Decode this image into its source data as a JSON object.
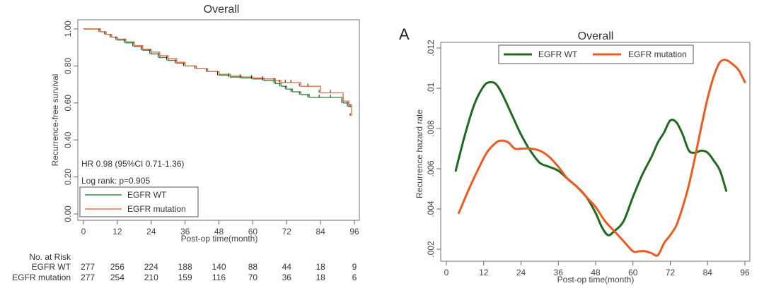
{
  "chart_data": [
    {
      "type": "line",
      "subtype": "kaplan-meier",
      "title": "Overall",
      "xlabel": "Post-op time(month)",
      "ylabel": "Recurrence-free survival",
      "xlim": [
        0,
        96
      ],
      "ylim": [
        0,
        1
      ],
      "xticks": [
        "0",
        "12",
        "24",
        "36",
        "48",
        "60",
        "72",
        "84",
        "96"
      ],
      "xtick_values": [
        0,
        12,
        24,
        36,
        48,
        60,
        72,
        84,
        96
      ],
      "yticks": [
        "0.00",
        "0.20",
        "0.40",
        "0.60",
        "0.80",
        "1.00"
      ],
      "ytick_values": [
        0,
        0.2,
        0.4,
        0.6,
        0.8,
        1.0
      ],
      "grid": false,
      "legend_position": "bottom-left",
      "annotations": [
        "HR 0.98 (95%CI 0.71-1.36)",
        "Log rank: p=0.905"
      ],
      "series": [
        {
          "name": "EGFR WT",
          "color": "#3a8a4a",
          "x": [
            0,
            4,
            6,
            8,
            10,
            12,
            15,
            18,
            21,
            24,
            27,
            30,
            33,
            36,
            40,
            44,
            48,
            52,
            56,
            60,
            64,
            68,
            70,
            72,
            74,
            77,
            80,
            84,
            88,
            92,
            94,
            95
          ],
          "y": [
            1.0,
            1.0,
            0.985,
            0.97,
            0.955,
            0.94,
            0.925,
            0.905,
            0.885,
            0.865,
            0.845,
            0.83,
            0.815,
            0.8,
            0.785,
            0.77,
            0.75,
            0.74,
            0.735,
            0.73,
            0.72,
            0.705,
            0.69,
            0.675,
            0.66,
            0.645,
            0.63,
            0.63,
            0.63,
            0.6,
            0.58,
            0.58
          ]
        },
        {
          "name": "EGFR mutation",
          "color": "#e8734a",
          "x": [
            0,
            4,
            6,
            8,
            10,
            12,
            15,
            18,
            21,
            24,
            27,
            30,
            33,
            36,
            40,
            44,
            48,
            52,
            56,
            60,
            64,
            68,
            70,
            72,
            74,
            77,
            80,
            84,
            88,
            92,
            94,
            95
          ],
          "y": [
            1.0,
            1.0,
            0.985,
            0.97,
            0.955,
            0.945,
            0.93,
            0.91,
            0.89,
            0.875,
            0.855,
            0.84,
            0.82,
            0.8,
            0.785,
            0.77,
            0.755,
            0.745,
            0.74,
            0.735,
            0.73,
            0.72,
            0.71,
            0.71,
            0.71,
            0.69,
            0.69,
            0.655,
            0.655,
            0.61,
            0.59,
            0.53
          ]
        }
      ],
      "risk_table": {
        "header": "No. at Risk",
        "times": [
          0,
          12,
          24,
          36,
          48,
          60,
          72,
          84,
          96
        ],
        "rows": [
          {
            "label": "EGFR WT",
            "values": [
              "277",
              "256",
              "224",
              "188",
              "140",
              "88",
              "44",
              "18",
              "9"
            ]
          },
          {
            "label": "EGFR mutation",
            "values": [
              "277",
              "254",
              "210",
              "159",
              "116",
              "70",
              "36",
              "18",
              "6"
            ]
          }
        ]
      }
    },
    {
      "type": "line",
      "panel_label": "A",
      "title": "Overall",
      "xlabel": "Post-op time(month)",
      "ylabel": "Recurrence hazard rate",
      "xlim": [
        0,
        96
      ],
      "ylim": [
        0.0015,
        0.0122
      ],
      "xticks": [
        "0",
        "12",
        "24",
        "36",
        "48",
        "60",
        "72",
        "84",
        "96"
      ],
      "xtick_values": [
        0,
        12,
        24,
        36,
        48,
        60,
        72,
        84,
        96
      ],
      "yticks": [
        ".002",
        ".004",
        ".006",
        ".008",
        ".01",
        ".012"
      ],
      "ytick_values": [
        0.002,
        0.004,
        0.006,
        0.008,
        0.01,
        0.012
      ],
      "grid": false,
      "legend_position": "top",
      "series": [
        {
          "name": "EGFR WT",
          "color": "#1e6a1e",
          "x": [
            3,
            6,
            9,
            12,
            14,
            16,
            18,
            21,
            24,
            27,
            30,
            33,
            36,
            39,
            42,
            45,
            48,
            50,
            52,
            54,
            57,
            60,
            63,
            66,
            68,
            70,
            72,
            74,
            76,
            78,
            80,
            82,
            84,
            86,
            88,
            90
          ],
          "y": [
            0.0059,
            0.0077,
            0.0092,
            0.0101,
            0.0103,
            0.0102,
            0.0097,
            0.0087,
            0.0077,
            0.0069,
            0.0063,
            0.0061,
            0.0059,
            0.0055,
            0.0051,
            0.0046,
            0.0038,
            0.0031,
            0.0027,
            0.0029,
            0.0034,
            0.0046,
            0.0057,
            0.0066,
            0.0073,
            0.0078,
            0.0084,
            0.0083,
            0.0077,
            0.0069,
            0.0068,
            0.0069,
            0.0068,
            0.0064,
            0.0059,
            0.0049
          ]
        },
        {
          "name": "EGFR mutation",
          "color": "#ef5a1f",
          "x": [
            4,
            7,
            10,
            13,
            16,
            18,
            20,
            22,
            24,
            27,
            30,
            33,
            36,
            39,
            42,
            45,
            48,
            51,
            54,
            57,
            60,
            62,
            64,
            66,
            68,
            70,
            72,
            74,
            76,
            78,
            80,
            82,
            84,
            86,
            88,
            90,
            92,
            94,
            96
          ],
          "y": [
            0.0038,
            0.0049,
            0.0059,
            0.0068,
            0.0073,
            0.0074,
            0.0073,
            0.007,
            0.007,
            0.007,
            0.0069,
            0.0066,
            0.0061,
            0.0055,
            0.0051,
            0.0046,
            0.0041,
            0.0034,
            0.0029,
            0.0024,
            0.0019,
            0.0019,
            0.0019,
            0.0018,
            0.0017,
            0.0023,
            0.0027,
            0.0032,
            0.0041,
            0.0052,
            0.0066,
            0.0081,
            0.0095,
            0.0106,
            0.0113,
            0.0114,
            0.0112,
            0.0109,
            0.0103
          ]
        }
      ]
    }
  ]
}
